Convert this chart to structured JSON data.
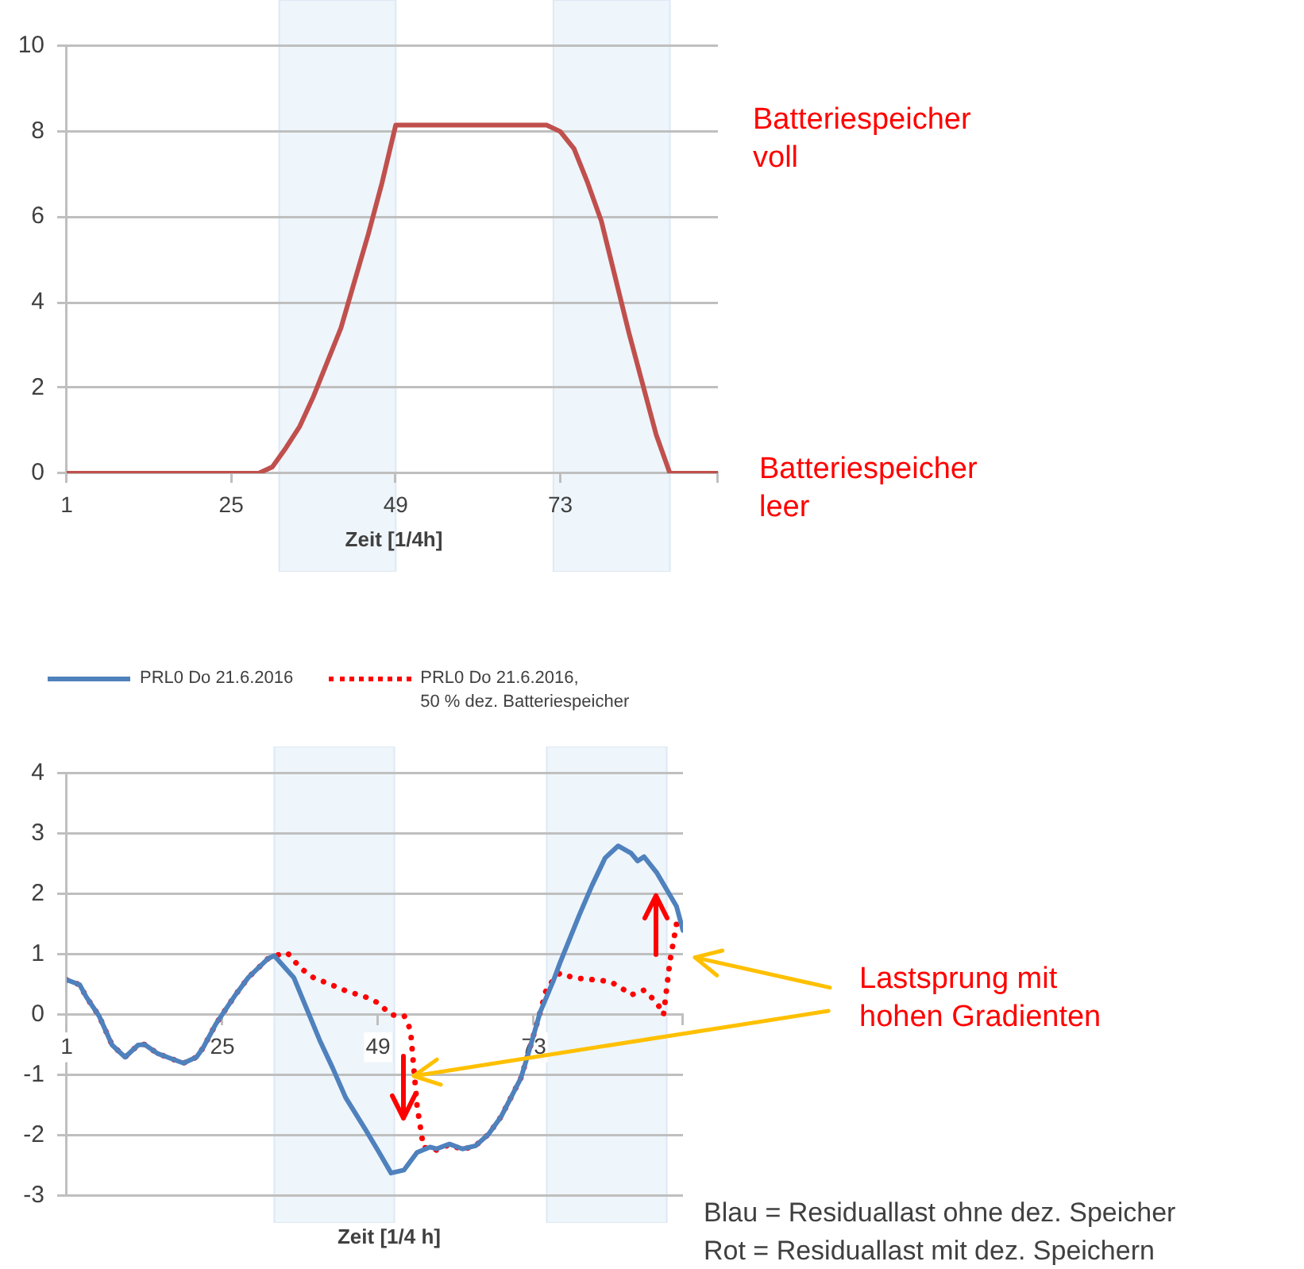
{
  "chart_data": [
    {
      "type": "line",
      "xlabel": "Zeit [1/4h]",
      "color": "#c0504d",
      "x": [
        1,
        29,
        31,
        33,
        35,
        37,
        39,
        41,
        43,
        45,
        47,
        49,
        71,
        73,
        75,
        77,
        79,
        81,
        83,
        85,
        87,
        89,
        96
      ],
      "values": [
        0,
        0,
        0.15,
        0.6,
        1.1,
        1.8,
        2.6,
        3.4,
        4.5,
        5.6,
        6.8,
        8.15,
        8.15,
        8.0,
        7.6,
        6.8,
        5.9,
        4.6,
        3.3,
        2.1,
        0.9,
        0,
        0
      ],
      "xlim": [
        1,
        96
      ],
      "xticks": [
        1,
        25,
        49,
        73,
        {
          "value": 96,
          "label": null
        }
      ],
      "ylim": [
        0,
        10
      ],
      "yticks": [
        0,
        2,
        4,
        6,
        8,
        10
      ],
      "grid": "y",
      "bands": [
        {
          "axis": "x",
          "from": 32,
          "to": 49,
          "color": "#eef5fb"
        },
        {
          "axis": "x",
          "from": 72,
          "to": 89,
          "color": "#eef5fb"
        }
      ],
      "annotations": [
        "Batteriespeicher\nvoll",
        "Batteriespeicher\nleer"
      ]
    },
    {
      "type": "line",
      "xlabel": "Zeit [1/4 h]",
      "legend": "top left",
      "grid": "y",
      "xlim": [
        1,
        96
      ],
      "xticks": [
        1,
        25,
        49,
        73,
        {
          "value": 96,
          "label": null
        }
      ],
      "ylim": [
        -3,
        4
      ],
      "yticks": [
        -3,
        -2,
        -1,
        0,
        1,
        2,
        3,
        4
      ],
      "series": [
        {
          "name": "PRL0 Do 21.6.2016",
          "color": "#4f81bd",
          "line_style": "solid",
          "x": [
            1,
            3,
            4,
            6,
            8,
            10,
            12,
            13,
            15,
            17,
            19,
            21,
            22,
            24,
            27,
            29,
            32,
            33,
            36,
            38,
            40,
            42,
            44,
            47,
            49,
            51,
            53,
            55,
            57,
            58,
            60,
            62,
            64,
            66,
            68,
            71,
            72,
            74,
            76,
            77,
            80,
            82,
            84,
            86,
            88,
            89,
            90,
            92,
            95,
            96
          ],
          "values": [
            0.58,
            0.5,
            0.3,
            -0.02,
            -0.5,
            -0.7,
            -0.5,
            -0.49,
            -0.64,
            -0.72,
            -0.8,
            -0.7,
            -0.55,
            -0.15,
            0.33,
            0.62,
            0.93,
            0.98,
            0.62,
            0.1,
            -0.42,
            -0.88,
            -1.37,
            -1.89,
            -2.25,
            -2.62,
            -2.57,
            -2.28,
            -2.19,
            -2.22,
            -2.14,
            -2.22,
            -2.17,
            -1.98,
            -1.68,
            -1.05,
            -0.7,
            0.05,
            0.56,
            0.85,
            1.65,
            2.15,
            2.6,
            2.8,
            2.68,
            2.55,
            2.62,
            2.35,
            1.8,
            1.4
          ]
        },
        {
          "name": "PRL0 Do 21.6.2016,\n50 % dez. Batteriespeicher",
          "color": "#ff0000",
          "line_style": "dotted",
          "x": [
            1,
            3,
            4,
            6,
            8,
            10,
            12,
            13,
            15,
            17,
            19,
            21,
            22,
            24,
            27,
            29,
            32,
            33,
            35,
            37,
            39,
            42,
            44,
            47,
            49,
            51,
            53,
            54,
            55,
            56,
            57,
            58,
            60,
            62,
            64,
            66,
            68,
            71,
            72,
            74,
            75,
            77,
            79,
            81,
            83,
            85,
            87,
            88,
            90,
            92,
            93,
            94,
            95
          ],
          "values": [
            0.58,
            0.5,
            0.3,
            -0.02,
            -0.5,
            -0.7,
            -0.5,
            -0.49,
            -0.64,
            -0.72,
            -0.8,
            -0.7,
            -0.55,
            -0.15,
            0.33,
            0.62,
            0.93,
            0.98,
            1.03,
            0.78,
            0.62,
            0.49,
            0.4,
            0.3,
            0.2,
            0.0,
            -0.01,
            -0.25,
            -1.5,
            -2.2,
            -2.2,
            -2.24,
            -2.15,
            -2.23,
            -2.17,
            -1.98,
            -1.68,
            -1.05,
            -0.7,
            0.05,
            0.45,
            0.69,
            0.62,
            0.59,
            0.58,
            0.54,
            0.41,
            0.33,
            0.41,
            0.2,
            0.0,
            0.9,
            1.5
          ]
        }
      ],
      "bands": [
        {
          "axis": "x",
          "from": 33,
          "to": 51.5,
          "color": "#eef5fb"
        },
        {
          "axis": "x",
          "from": 75,
          "to": 93.5,
          "color": "#eef5fb"
        }
      ],
      "annotations": [
        {
          "text": "Lastsprung mit\nhohen Gradienten",
          "x": 54.6,
          "y": -1
        },
        "Blau = Residuallast ohne dez. Speicher",
        "Rot = Residuallast mit dez. Speichern"
      ]
    }
  ]
}
